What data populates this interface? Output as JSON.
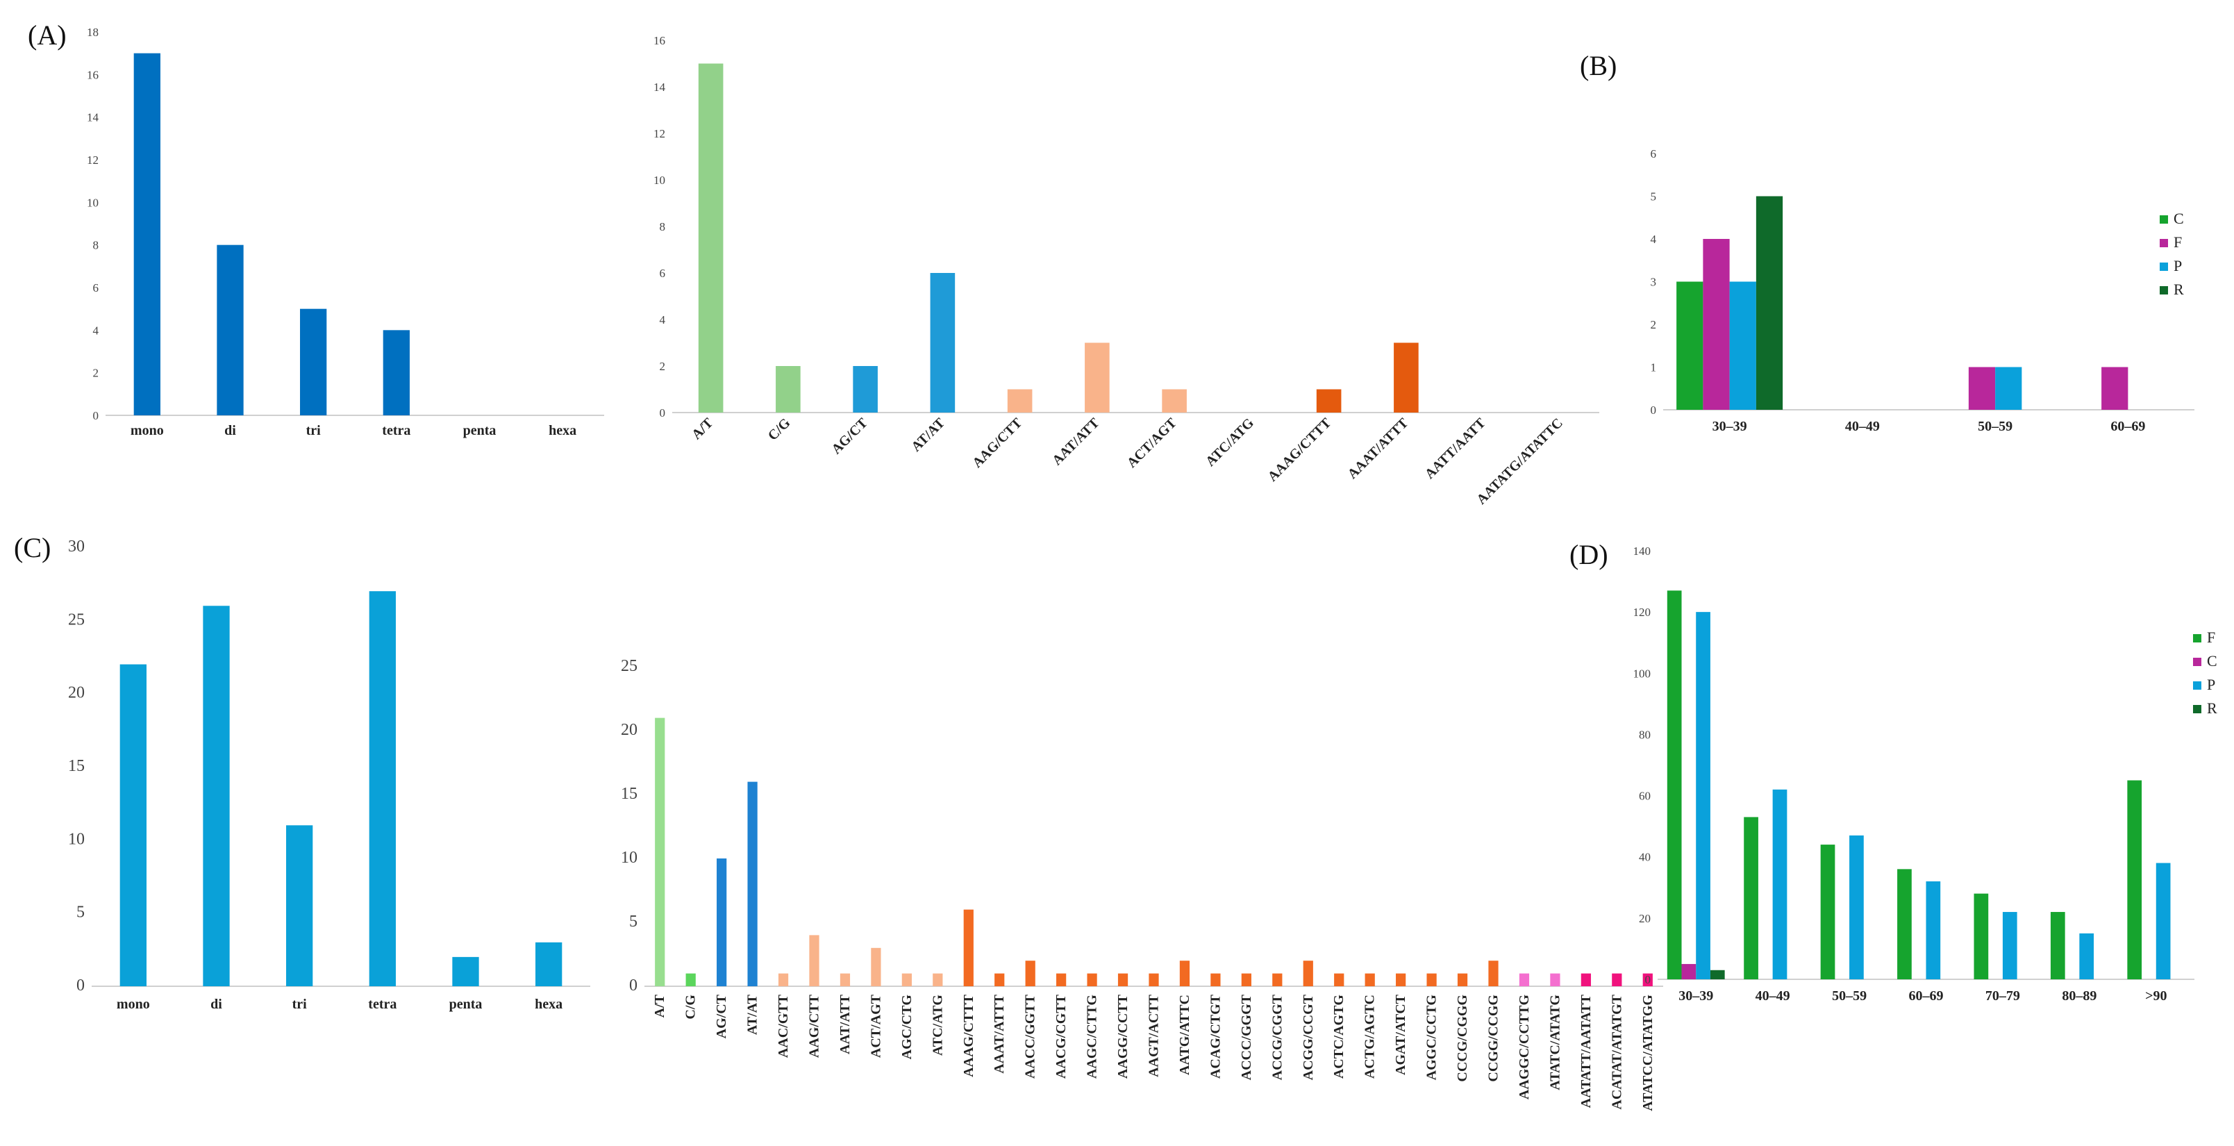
{
  "figure": {
    "labels": [
      "(A)",
      "(B)",
      "(C)",
      "(D)"
    ]
  },
  "chart_data": [
    {
      "id": "A1",
      "panel": "(A)",
      "type": "bar",
      "title": "",
      "xlabel": "",
      "ylabel": "",
      "ylim": [
        0,
        18
      ],
      "yticks": [
        0,
        2,
        4,
        6,
        8,
        10,
        12,
        14,
        16,
        18
      ],
      "categories": [
        "mono",
        "di",
        "tri",
        "tetra",
        "penta",
        "hexa"
      ],
      "values": [
        17,
        8,
        5,
        4,
        0,
        0
      ],
      "colors": [
        "#0070C0",
        "#0070C0",
        "#0070C0",
        "#0070C0",
        "#0070C0",
        "#0070C0"
      ]
    },
    {
      "id": "A2",
      "panel": "(A)",
      "type": "bar",
      "title": "",
      "xlabel": "",
      "ylabel": "",
      "ylim": [
        0,
        16
      ],
      "yticks": [
        0,
        2,
        4,
        6,
        8,
        10,
        12,
        14,
        16
      ],
      "categories": [
        "A/T",
        "C/G",
        "AG/CT",
        "AT/AT",
        "AAG/CTT",
        "AAT/ATT",
        "ACT/AGT",
        "ATC/ATG",
        "AAAG/CTTT",
        "AAAT/ATTT",
        "AATT/AATT",
        "AATATG/ATATTC"
      ],
      "values": [
        15,
        2,
        2,
        6,
        1,
        3,
        1,
        0,
        1,
        3,
        0,
        0
      ],
      "colors": [
        "#92D18A",
        "#92D18A",
        "#1F9BD7",
        "#1F9BD7",
        "#F9B38A",
        "#F9B38A",
        "#F9B38A",
        "#F9B38A",
        "#E45A0E",
        "#E45A0E",
        "#E45A0E",
        "#E45A0E"
      ]
    },
    {
      "id": "B",
      "panel": "(B)",
      "type": "bar",
      "title": "",
      "xlabel": "",
      "ylabel": "",
      "ylim": [
        0,
        6
      ],
      "yticks": [
        0,
        1,
        2,
        3,
        4,
        5,
        6
      ],
      "categories": [
        "30–39",
        "40–49",
        "50–59",
        "60–69"
      ],
      "legend_position": "right",
      "series": [
        {
          "name": "C",
          "color": "#16A42E",
          "values": [
            3,
            0,
            0,
            0
          ]
        },
        {
          "name": "F",
          "color": "#B8279B",
          "values": [
            4,
            0,
            1,
            1
          ]
        },
        {
          "name": "P",
          "color": "#0AA1DB",
          "values": [
            3,
            0,
            1,
            0
          ]
        },
        {
          "name": "R",
          "color": "#0F6A2A",
          "values": [
            5,
            0,
            0,
            0
          ]
        }
      ]
    },
    {
      "id": "C1",
      "panel": "(C)",
      "type": "bar",
      "title": "",
      "xlabel": "",
      "ylabel": "",
      "ylim": [
        0,
        30
      ],
      "yticks": [
        0,
        5,
        10,
        15,
        20,
        25,
        30
      ],
      "categories": [
        "mono",
        "di",
        "tri",
        "tetra",
        "penta",
        "hexa"
      ],
      "values": [
        22,
        26,
        11,
        27,
        2,
        3
      ],
      "colors": [
        "#0AA1D8",
        "#0AA1D8",
        "#0AA1D8",
        "#0AA1D8",
        "#0AA1D8",
        "#0AA1D8"
      ]
    },
    {
      "id": "C2",
      "panel": "(C)",
      "type": "bar",
      "title": "",
      "xlabel": "",
      "ylabel": "",
      "ylim": [
        0,
        25
      ],
      "yticks": [
        0,
        5,
        10,
        15,
        20,
        25
      ],
      "categories": [
        "A/T",
        "C/G",
        "AG/CT",
        "AT/AT",
        "AAC/GTT",
        "AAG/CTT",
        "AAT/ATT",
        "ACT/AGT",
        "AGC/CTG",
        "ATC/ATG",
        "AAAG/CTTT",
        "AAAT/ATTT",
        "AACC/GGTT",
        "AACG/CGTT",
        "AAGC/CTTG",
        "AAGG/CCTT",
        "AAGT/ACTT",
        "AATG/ATTC",
        "ACAG/CTGT",
        "ACCC/GGGT",
        "ACCG/CGGT",
        "ACGG/CCGT",
        "ACTC/AGTG",
        "ACTG/AGTC",
        "AGAT/ATCT",
        "AGGC/CCTG",
        "CCCG/CGGG",
        "CCGG/CCGG",
        "AAGGC/CCTTG",
        "ATATC/ATATG",
        "AATATT/AATATT",
        "ACATAT/ATATGT",
        "ATATCC/ATATGG"
      ],
      "values": [
        21,
        1,
        10,
        16,
        1,
        4,
        1,
        3,
        1,
        1,
        6,
        1,
        2,
        1,
        1,
        1,
        1,
        2,
        1,
        1,
        1,
        2,
        1,
        1,
        1,
        1,
        1,
        2,
        1,
        1,
        1,
        1,
        1
      ],
      "colors": [
        "#98DE8F",
        "#5BD55C",
        "#1E82D2",
        "#1E82D2",
        "#F9B38A",
        "#F9B38A",
        "#F9B38A",
        "#F9B38A",
        "#F9B38A",
        "#F9B38A",
        "#F26A21",
        "#F26A21",
        "#F26A21",
        "#F26A21",
        "#F26A21",
        "#F26A21",
        "#F26A21",
        "#F26A21",
        "#F26A21",
        "#F26A21",
        "#F26A21",
        "#F26A21",
        "#F26A21",
        "#F26A21",
        "#F26A21",
        "#F26A21",
        "#F26A21",
        "#F26A21",
        "#F46FCF",
        "#F46FCF",
        "#F0127D",
        "#F0127D",
        "#F0127D"
      ]
    },
    {
      "id": "D",
      "panel": "(D)",
      "type": "bar",
      "title": "",
      "xlabel": "",
      "ylabel": "",
      "ylim": [
        0,
        140
      ],
      "yticks": [
        0,
        20,
        40,
        60,
        80,
        100,
        120,
        140
      ],
      "categories": [
        "30–39",
        "40–49",
        "50–59",
        "60–69",
        "70–79",
        "80–89",
        ">90"
      ],
      "legend_position": "right",
      "series": [
        {
          "name": "F",
          "color": "#16A42E",
          "values": [
            127,
            53,
            44,
            36,
            28,
            22,
            65
          ]
        },
        {
          "name": "C",
          "color": "#B8279B",
          "values": [
            5,
            0,
            0,
            0,
            0,
            0,
            0
          ]
        },
        {
          "name": "P",
          "color": "#0AA1DB",
          "values": [
            120,
            62,
            47,
            32,
            22,
            15,
            38
          ]
        },
        {
          "name": "R",
          "color": "#0F6A2A",
          "values": [
            3,
            0,
            0,
            0,
            0,
            0,
            0
          ]
        }
      ]
    }
  ]
}
